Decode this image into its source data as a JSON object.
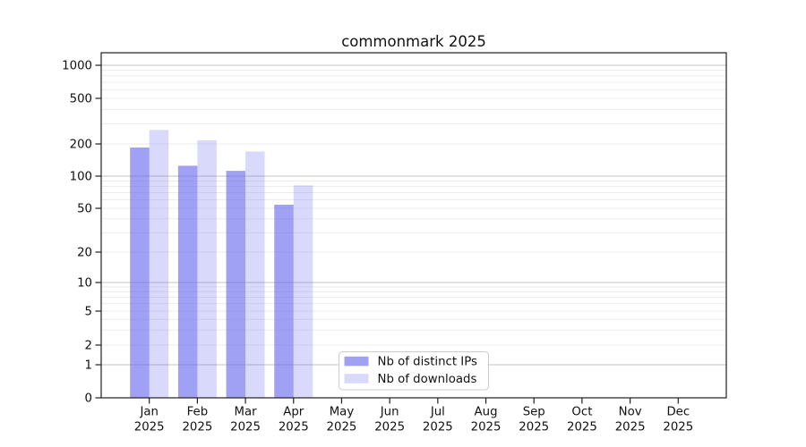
{
  "page": {
    "background": "#ffffff"
  },
  "chart_data": {
    "type": "bar",
    "title": "commonmark 2025",
    "categories": [
      "Jan 2025",
      "Feb 2025",
      "Mar 2025",
      "Apr 2025",
      "May 2025",
      "Jun 2025",
      "Jul 2025",
      "Aug 2025",
      "Sep 2025",
      "Oct 2025",
      "Nov 2025",
      "Dec 2025"
    ],
    "series": [
      {
        "name": "Nb of distinct IPs",
        "values": [
          185,
          125,
          112,
          54,
          null,
          null,
          null,
          null,
          null,
          null,
          null,
          null
        ],
        "color": "#6666ee",
        "opacity": 0.62
      },
      {
        "name": "Nb of downloads",
        "values": [
          265,
          215,
          170,
          82,
          null,
          null,
          null,
          null,
          null,
          null,
          null,
          null
        ],
        "color": "#6666ee",
        "opacity": 0.25
      }
    ],
    "xlabel": "",
    "ylabel": "",
    "yscale": "symlog",
    "yticks": [
      0,
      1,
      2,
      5,
      10,
      20,
      50,
      100,
      200,
      500,
      1000
    ],
    "ylim": [
      0,
      1200
    ],
    "grid": true,
    "legend": {
      "position": "lower-center",
      "border": "#cccccc",
      "background": "#ffffff"
    },
    "colors": {
      "grid_major": "#c3c3c3",
      "grid_minor": "#ebebeb",
      "spine": "#1f1f1f",
      "text": "#111111"
    }
  }
}
